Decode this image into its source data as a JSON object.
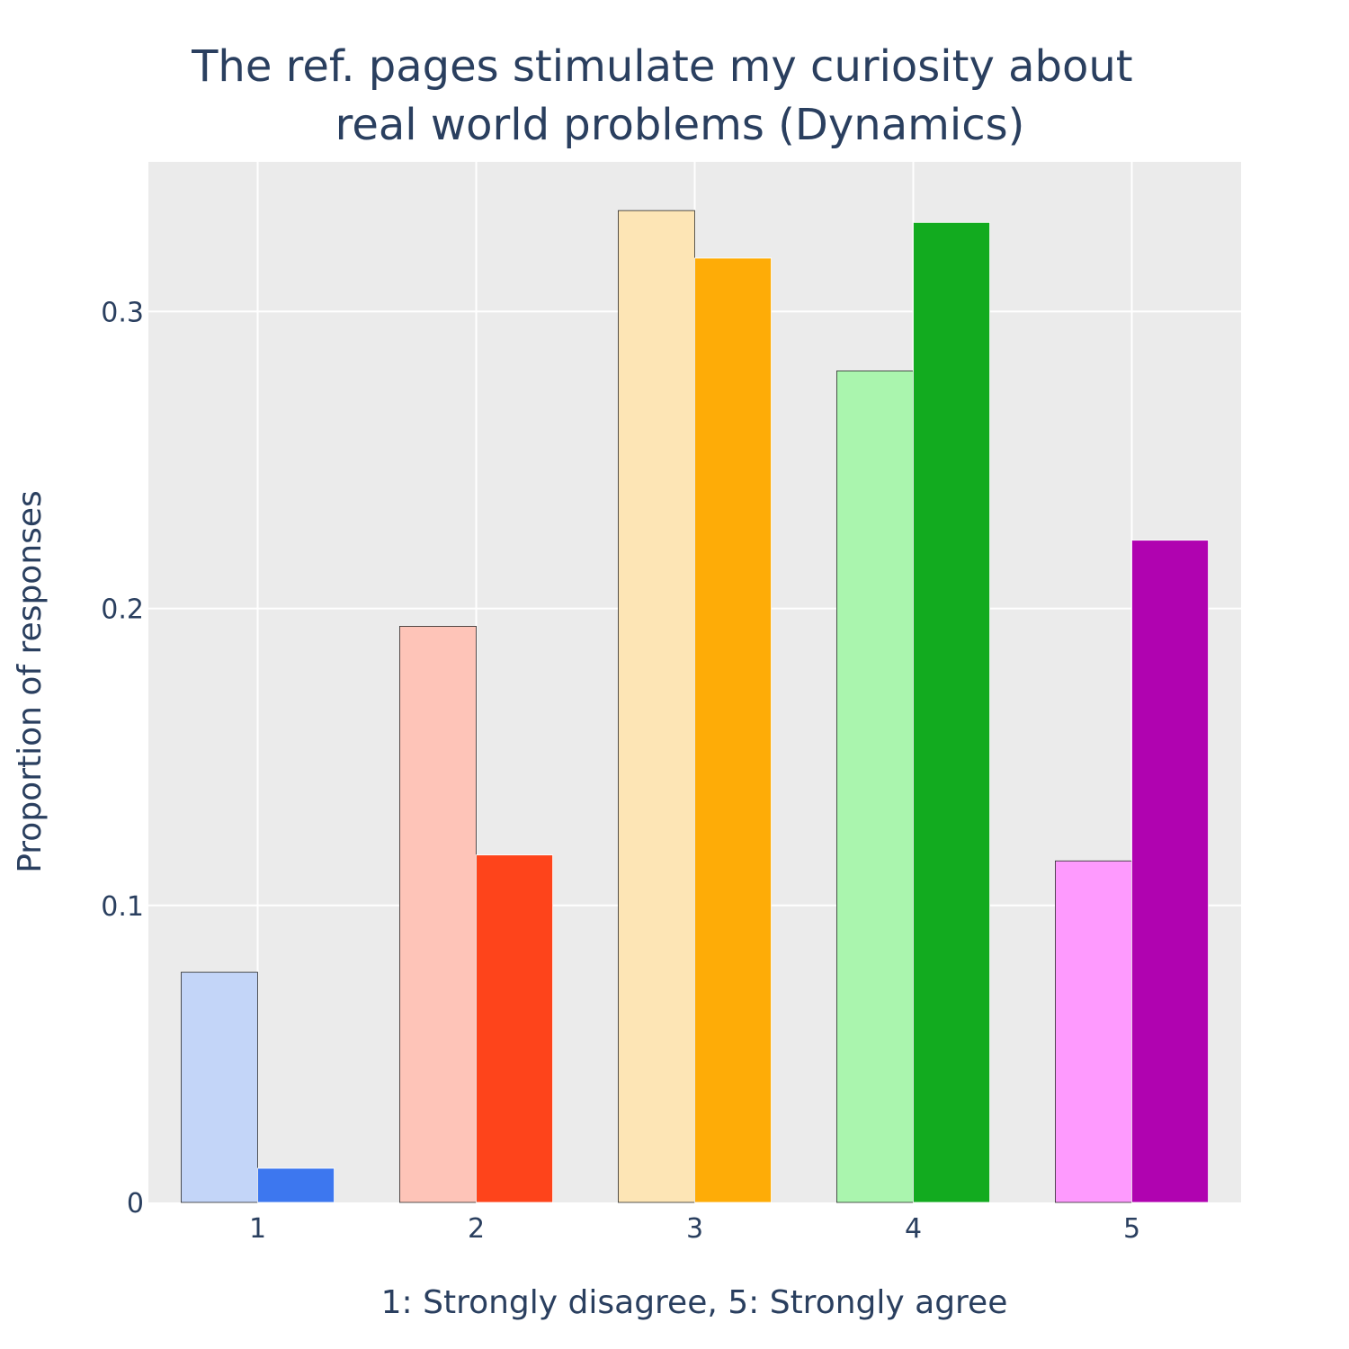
{
  "chart_data": {
    "type": "bar",
    "title_lines": [
      "The ref. pages stimulate my curiosity about",
      "real world problems (Dynamics)"
    ],
    "xlabel": "1: Strongly disagree, 5: Strongly agree",
    "ylabel": "Proportion of responses",
    "categories": [
      "1",
      "2",
      "3",
      "4",
      "5"
    ],
    "ylim": [
      0,
      0.3504
    ],
    "yticks": [
      0,
      0.1,
      0.2,
      0.3
    ],
    "ytick_labels": [
      "0",
      "0.1",
      "0.2",
      "0.3"
    ],
    "grid": true,
    "legend": "none",
    "series": [
      {
        "values": [
          0.0775,
          0.194,
          0.334,
          0.28,
          0.115
        ],
        "colors": [
          "#c3d5f8",
          "#fec4b8",
          "#fde5b5",
          "#aaf5ae",
          "#fe9afe"
        ],
        "outlined": true
      },
      {
        "values": [
          0.0115,
          0.117,
          0.318,
          0.33,
          0.223
        ],
        "colors": [
          "#3d77ef",
          "#fe441b",
          "#feac07",
          "#12ab1f",
          "#b003b0"
        ],
        "outlined": false
      }
    ],
    "colors": {
      "plot_bg": "#ebebeb",
      "grid": "#ffffff",
      "text": "#2a3f5f"
    }
  }
}
